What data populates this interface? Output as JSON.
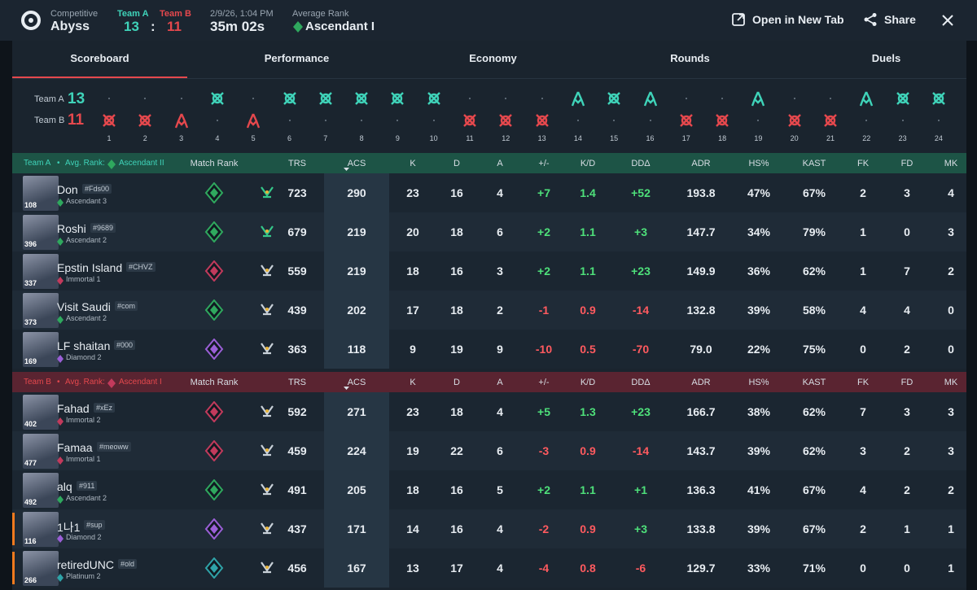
{
  "header": {
    "mode": "Competitive",
    "map": "Abyss",
    "score_sep": ":",
    "date": "2/9/26, 1:04 PM",
    "duration": "35m 02s",
    "avg_rank_label": "Average Rank",
    "avg_rank": "Ascendant I",
    "open_tab": "Open in New Tab",
    "share": "Share"
  },
  "tabs": [
    "Scoreboard",
    "Performance",
    "Economy",
    "Rounds",
    "Duels"
  ],
  "timeline": {
    "rounds": [
      {
        "number": "1",
        "winner": "B",
        "icon": "elim"
      },
      {
        "number": "2",
        "winner": "B",
        "icon": "elim"
      },
      {
        "number": "3",
        "winner": "B",
        "icon": "spike"
      },
      {
        "number": "4",
        "winner": "A",
        "icon": "elim"
      },
      {
        "number": "5",
        "winner": "B",
        "icon": "spike"
      },
      {
        "number": "6",
        "winner": "A",
        "icon": "elim"
      },
      {
        "number": "7",
        "winner": "A",
        "icon": "elim"
      },
      {
        "number": "8",
        "winner": "A",
        "icon": "elim"
      },
      {
        "number": "9",
        "winner": "A",
        "icon": "elim"
      },
      {
        "number": "10",
        "winner": "A",
        "icon": "elim"
      },
      {
        "number": "11",
        "winner": "B",
        "icon": "elim"
      },
      {
        "number": "12",
        "winner": "B",
        "icon": "elim"
      },
      {
        "number": "13",
        "winner": "B",
        "icon": "elim"
      },
      {
        "number": "14",
        "winner": "A",
        "icon": "spike"
      },
      {
        "number": "15",
        "winner": "A",
        "icon": "elim"
      },
      {
        "number": "16",
        "winner": "A",
        "icon": "spike"
      },
      {
        "number": "17",
        "winner": "B",
        "icon": "elim"
      },
      {
        "number": "18",
        "winner": "B",
        "icon": "elim"
      },
      {
        "number": "19",
        "winner": "A",
        "icon": "spike"
      },
      {
        "number": "20",
        "winner": "B",
        "icon": "elim"
      },
      {
        "number": "21",
        "winner": "B",
        "icon": "elim"
      },
      {
        "number": "22",
        "winner": "A",
        "icon": "spike"
      },
      {
        "number": "23",
        "winner": "A",
        "icon": "elim"
      },
      {
        "number": "24",
        "winner": "A",
        "icon": "elim"
      }
    ]
  },
  "table": {
    "separator": "•",
    "avg_rank_label": "Avg. Rank:",
    "columns": [
      "Match Rank",
      "TRS",
      "ACS",
      "K",
      "D",
      "A",
      "+/-",
      "K/D",
      "DDΔ",
      "ADR",
      "HS%",
      "KAST",
      "FK",
      "FD",
      "MK"
    ]
  },
  "teams": [
    {
      "name": "Team A",
      "score": "13",
      "avg_rank": "Ascendant II",
      "color": "#3fd3b9",
      "header_color": "#1d5446",
      "players": [
        {
          "name": "Don",
          "tag": "#Fds00",
          "rank": "Ascendant 3",
          "level": "108",
          "rank_color": "#2fa85e",
          "stats": [
            "723",
            "290",
            "23",
            "16",
            "4",
            "+7",
            "1.4",
            "+52",
            "193.8",
            "47%",
            "67%",
            "2",
            "3",
            "4"
          ]
        },
        {
          "name": "Roshi",
          "tag": "#9689",
          "rank": "Ascendant 2",
          "level": "396",
          "rank_color": "#2fa85e",
          "stats": [
            "679",
            "219",
            "20",
            "18",
            "6",
            "+2",
            "1.1",
            "+3",
            "147.7",
            "34%",
            "79%",
            "1",
            "0",
            "3"
          ]
        },
        {
          "name": "Epstin Island",
          "tag": "#CHVZ",
          "rank": "Immortal 1",
          "level": "337",
          "rank_color": "#c23a5c",
          "stats": [
            "559",
            "219",
            "18",
            "16",
            "3",
            "+2",
            "1.1",
            "+23",
            "149.9",
            "36%",
            "62%",
            "1",
            "7",
            "2"
          ]
        },
        {
          "name": "Visit Saudi",
          "tag": "#com",
          "rank": "Ascendant 2",
          "level": "373",
          "rank_color": "#2fa85e",
          "stats": [
            "439",
            "202",
            "17",
            "18",
            "2",
            "-1",
            "0.9",
            "-14",
            "132.8",
            "39%",
            "58%",
            "4",
            "4",
            "0"
          ]
        },
        {
          "name": "LF shaitan",
          "tag": "#000",
          "rank": "Diamond 2",
          "level": "169",
          "rank_color": "#9a5fd6",
          "stats": [
            "363",
            "118",
            "9",
            "19",
            "9",
            "-10",
            "0.5",
            "-70",
            "79.0",
            "22%",
            "75%",
            "0",
            "2",
            "0"
          ]
        }
      ]
    },
    {
      "name": "Team B",
      "score": "11",
      "avg_rank": "Ascendant I",
      "color": "#e5484d",
      "header_color": "#5a2431",
      "players": [
        {
          "name": "Fahad",
          "tag": "#xEz",
          "rank": "Immortal 2",
          "level": "402",
          "rank_color": "#c23a5c",
          "stats": [
            "592",
            "271",
            "23",
            "18",
            "4",
            "+5",
            "1.3",
            "+23",
            "166.7",
            "38%",
            "62%",
            "7",
            "3",
            "3"
          ]
        },
        {
          "name": "Famaa",
          "tag": "#meoww",
          "rank": "Immortal 1",
          "level": "477",
          "rank_color": "#c23a5c",
          "stats": [
            "459",
            "224",
            "19",
            "22",
            "6",
            "-3",
            "0.9",
            "-14",
            "143.7",
            "39%",
            "62%",
            "3",
            "2",
            "3"
          ]
        },
        {
          "name": "alq",
          "tag": "#911",
          "rank": "Ascendant 2",
          "level": "492",
          "rank_color": "#2fa85e",
          "stats": [
            "491",
            "205",
            "18",
            "16",
            "5",
            "+2",
            "1.1",
            "+1",
            "136.3",
            "41%",
            "67%",
            "4",
            "2",
            "2"
          ]
        },
        {
          "name": "1나1",
          "tag": "#sup",
          "rank": "Diamond 2",
          "level": "116",
          "rank_color": "#9a5fd6",
          "stats": [
            "437",
            "171",
            "14",
            "16",
            "4",
            "-2",
            "0.9",
            "+3",
            "133.8",
            "39%",
            "67%",
            "2",
            "1",
            "1"
          ]
        },
        {
          "name": "retiredUNC",
          "tag": "#old",
          "rank": "Platinum 2",
          "level": "266",
          "rank_color": "#2fa3a8",
          "stats": [
            "456",
            "167",
            "13",
            "17",
            "4",
            "-4",
            "0.8",
            "-6",
            "129.7",
            "33%",
            "71%",
            "0",
            "0",
            "1"
          ]
        }
      ]
    }
  ]
}
